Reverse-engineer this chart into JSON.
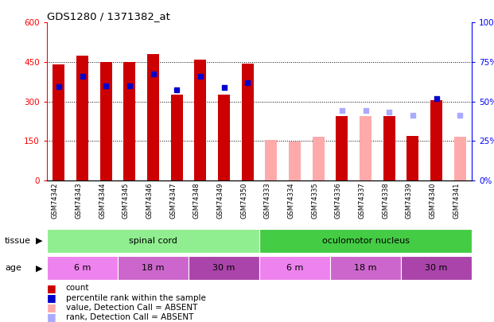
{
  "title": "GDS1280 / 1371382_at",
  "samples": [
    "GSM74342",
    "GSM74343",
    "GSM74344",
    "GSM74345",
    "GSM74346",
    "GSM74347",
    "GSM74348",
    "GSM74349",
    "GSM74350",
    "GSM74333",
    "GSM74334",
    "GSM74335",
    "GSM74336",
    "GSM74337",
    "GSM74338",
    "GSM74339",
    "GSM74340",
    "GSM74341"
  ],
  "count_values": [
    440,
    475,
    450,
    450,
    480,
    325,
    460,
    325,
    445,
    null,
    null,
    null,
    245,
    null,
    245,
    170,
    305,
    null
  ],
  "count_absent": [
    null,
    null,
    null,
    null,
    null,
    null,
    null,
    null,
    null,
    155,
    148,
    165,
    null,
    245,
    null,
    null,
    null,
    165
  ],
  "percentile_values": [
    355,
    395,
    360,
    358,
    405,
    345,
    395,
    352,
    370,
    null,
    null,
    null,
    null,
    null,
    null,
    null,
    310,
    null
  ],
  "percentile_absent": [
    null,
    null,
    null,
    null,
    null,
    null,
    null,
    null,
    null,
    null,
    null,
    null,
    265,
    265,
    258,
    248,
    null,
    248
  ],
  "count_color": "#cc0000",
  "count_absent_color": "#ffaaaa",
  "percentile_color": "#0000cc",
  "percentile_absent_color": "#aaaaff",
  "ylim_left": [
    0,
    600
  ],
  "ylim_right": [
    0,
    100
  ],
  "yticks_left": [
    0,
    150,
    300,
    450,
    600
  ],
  "yticks_right": [
    0,
    25,
    50,
    75,
    100
  ],
  "ytick_labels_right": [
    "0%",
    "25%",
    "50%",
    "75%",
    "100%"
  ],
  "tissue_spinal_color": "#90ee90",
  "tissue_oculo_color": "#44cc44",
  "age_6m_color": "#ee82ee",
  "age_18m_color": "#cc66cc",
  "age_30m_color": "#aa44aa",
  "xtick_bg": "#d0d0d0",
  "fig_bg": "#ffffff",
  "bar_width": 0.5,
  "tissue_groups": [
    {
      "label": "spinal cord",
      "start": 0,
      "end": 9
    },
    {
      "label": "oculomotor nucleus",
      "start": 9,
      "end": 18
    }
  ],
  "age_groups": [
    {
      "label": "6 m",
      "start": 0,
      "end": 3
    },
    {
      "label": "18 m",
      "start": 3,
      "end": 6
    },
    {
      "label": "30 m",
      "start": 6,
      "end": 9
    },
    {
      "label": "6 m",
      "start": 9,
      "end": 12
    },
    {
      "label": "18 m",
      "start": 12,
      "end": 15
    },
    {
      "label": "30 m",
      "start": 15,
      "end": 18
    }
  ],
  "legend_items": [
    {
      "color": "#cc0000",
      "label": "count"
    },
    {
      "color": "#0000cc",
      "label": "percentile rank within the sample"
    },
    {
      "color": "#ffaaaa",
      "label": "value, Detection Call = ABSENT"
    },
    {
      "color": "#aaaaff",
      "label": "rank, Detection Call = ABSENT"
    }
  ]
}
